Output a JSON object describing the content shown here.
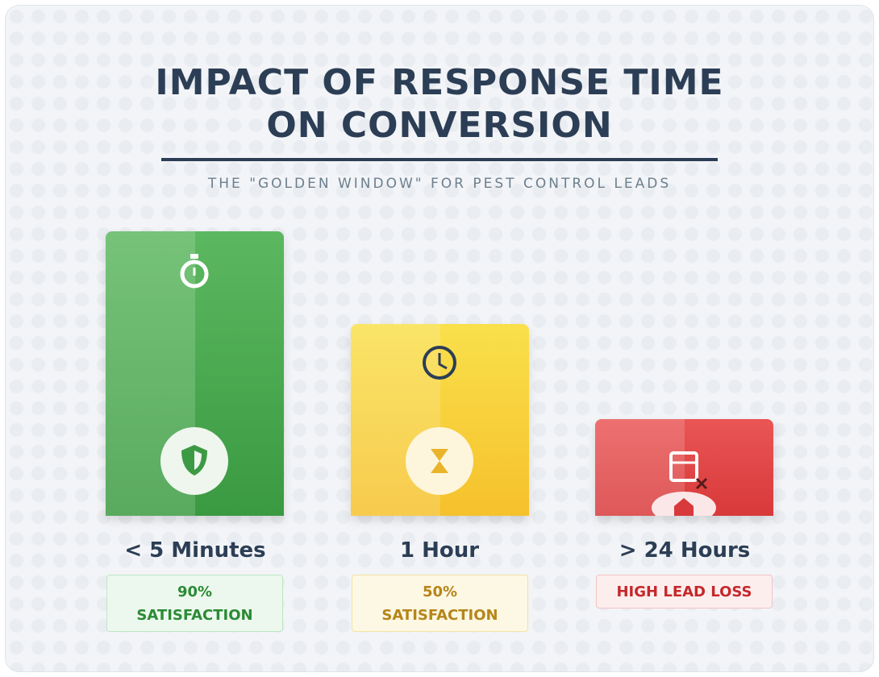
{
  "header": {
    "title": "IMPACT OF RESPONSE TIME ON CONVERSION",
    "subtitle": "THE \"GOLDEN WINDOW\" FOR PEST CONTROL LEADS"
  },
  "columns": [
    {
      "label": "< 5 Minutes",
      "badge": [
        "90%",
        "SATISFACTION"
      ]
    },
    {
      "label": "1 Hour",
      "badge": [
        "50%",
        "SATISFACTION"
      ]
    },
    {
      "label": "> 24 Hours",
      "badge": [
        "HIGH LEAD LOSS"
      ]
    }
  ]
}
